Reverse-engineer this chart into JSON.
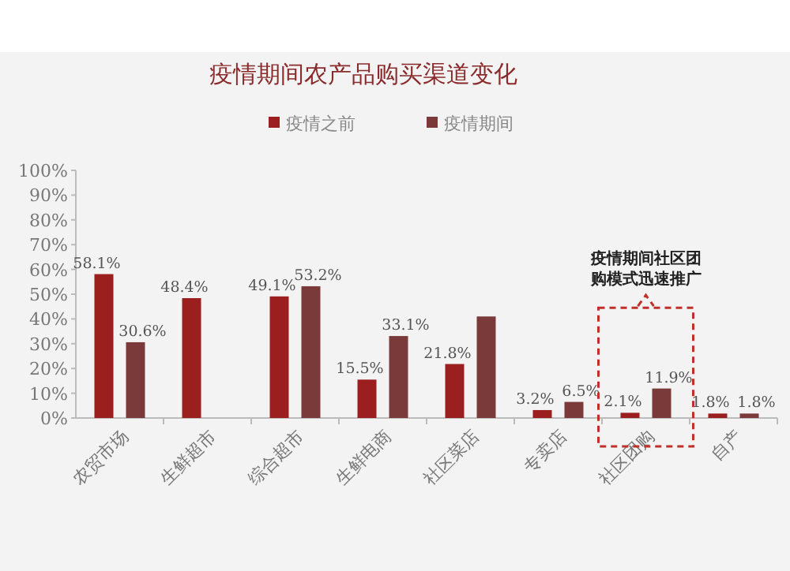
{
  "chart_data": {
    "type": "bar",
    "title": "疫情期间农产品购买渠道变化",
    "categories": [
      "农贸市场",
      "生鲜超市",
      "综合超市",
      "生鲜电商",
      "社区菜店",
      "专卖店",
      "社区团购",
      "自产"
    ],
    "series": [
      {
        "name": "疫情之前",
        "color": "#9c1f1f",
        "values": [
          58.1,
          48.4,
          49.1,
          15.5,
          21.8,
          3.2,
          2.1,
          1.8
        ],
        "value_labels": [
          "58.1%",
          "48.4%",
          "49.1%",
          "15.5%",
          "21.8%",
          "3.2%",
          "2.1%",
          "1.8%"
        ]
      },
      {
        "name": "疫情期间",
        "color": "#7b3a3a",
        "values": [
          30.6,
          null,
          53.2,
          33.1,
          41,
          6.5,
          11.9,
          1.8
        ],
        "value_labels": [
          "30.6%",
          null,
          "53.2%",
          "33.1%",
          null,
          "6.5%",
          "11.9%",
          "1.8%"
        ]
      }
    ],
    "ylim": [
      0,
      100
    ],
    "yticks": [
      {
        "value": 0,
        "label": "0%"
      },
      {
        "value": 10,
        "label": "10%"
      },
      {
        "value": 20,
        "label": "20%"
      },
      {
        "value": 30,
        "label": "30%"
      },
      {
        "value": 40,
        "label": "40%"
      },
      {
        "value": 50,
        "label": "50%"
      },
      {
        "value": 60,
        "label": "60%"
      },
      {
        "value": 70,
        "label": "70%"
      },
      {
        "value": 80,
        "label": "80%"
      },
      {
        "value": 90,
        "label": "90%"
      },
      {
        "value": 100,
        "label": "100%"
      }
    ],
    "grid": false,
    "legend": "top",
    "annotations": [
      "疫情期间社区团购模式迅速推广"
    ]
  }
}
